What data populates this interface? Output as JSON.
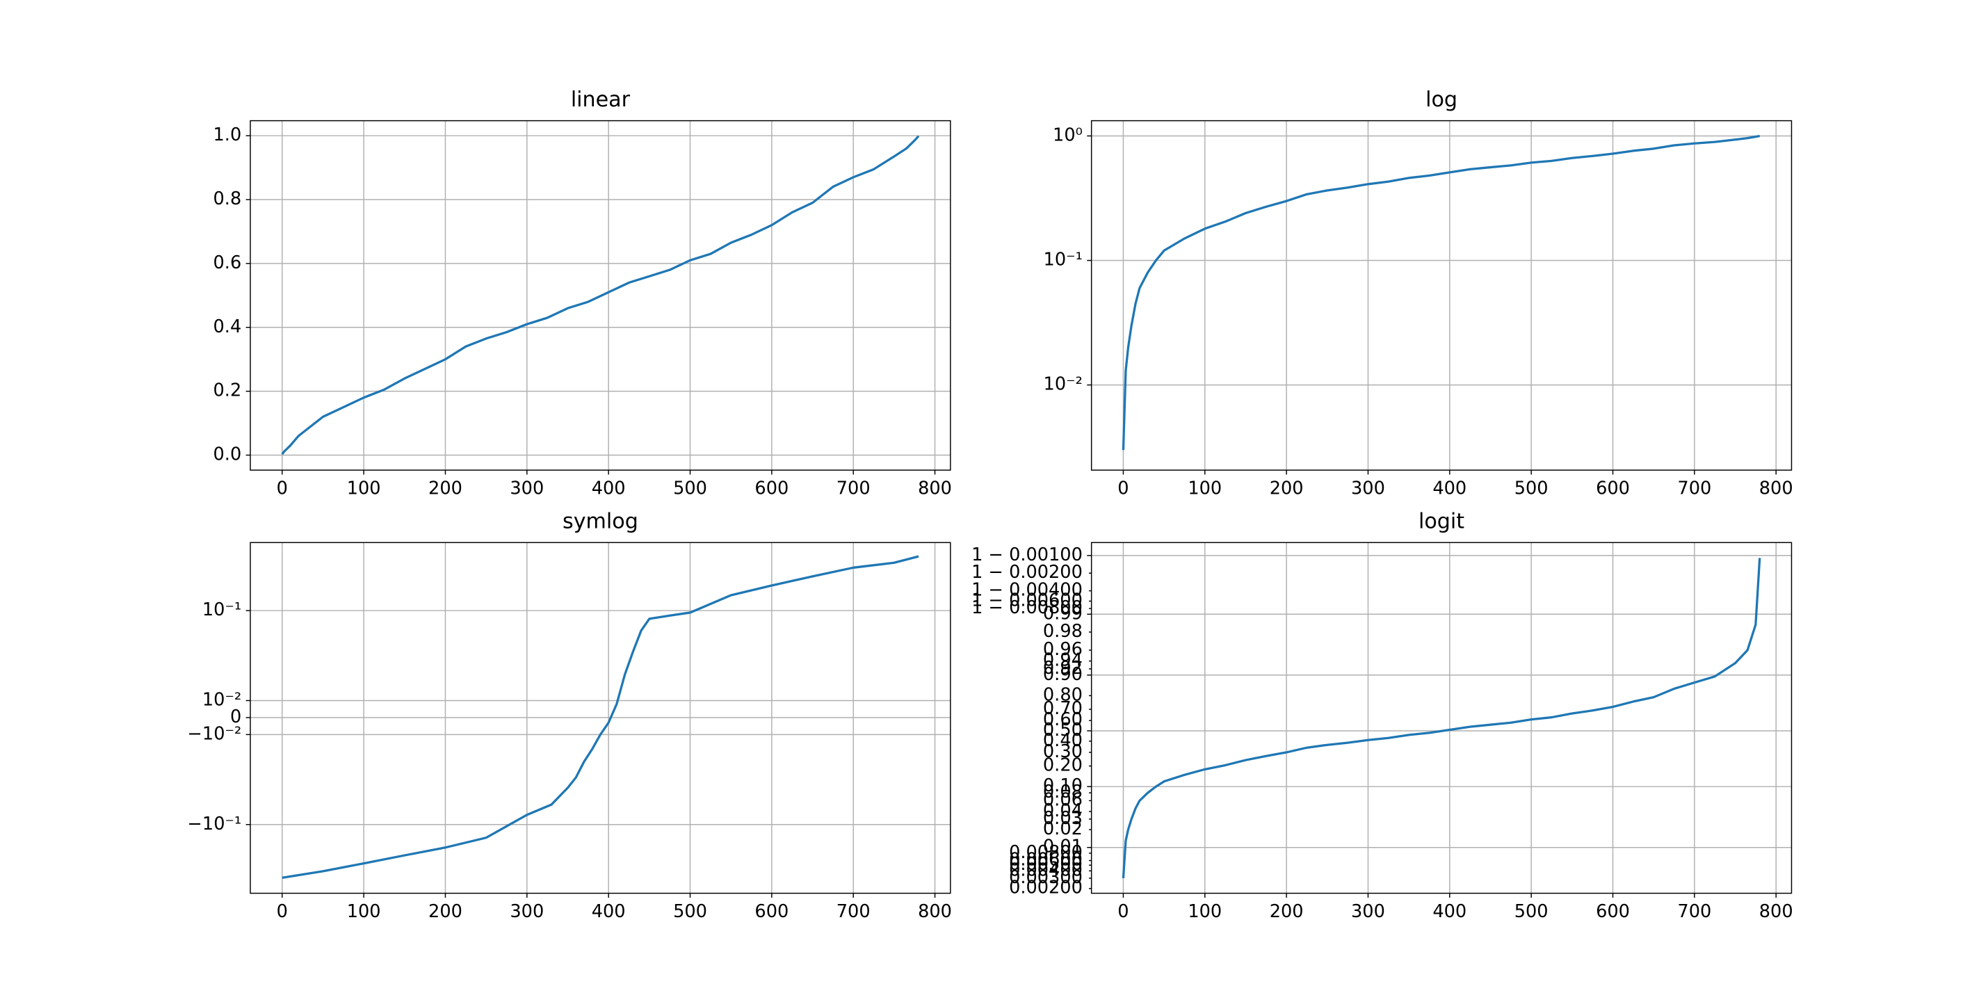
{
  "chart_data": [
    {
      "type": "line",
      "title": "linear",
      "yscale": "linear",
      "color": "#1f77b4",
      "grid": true,
      "x": [
        0,
        3,
        6,
        10,
        15,
        20,
        30,
        40,
        50,
        75,
        100,
        125,
        150,
        175,
        200,
        225,
        250,
        275,
        300,
        325,
        350,
        375,
        400,
        425,
        450,
        475,
        500,
        525,
        550,
        575,
        600,
        625,
        650,
        675,
        700,
        725,
        750,
        765,
        775,
        780
      ],
      "values": [
        0.003,
        0.013,
        0.02,
        0.03,
        0.045,
        0.06,
        0.08,
        0.1,
        0.12,
        0.15,
        0.18,
        0.205,
        0.24,
        0.27,
        0.3,
        0.34,
        0.365,
        0.385,
        0.41,
        0.43,
        0.46,
        0.48,
        0.51,
        0.54,
        0.56,
        0.58,
        0.61,
        0.63,
        0.665,
        0.69,
        0.72,
        0.76,
        0.79,
        0.84,
        0.87,
        0.895,
        0.935,
        0.96,
        0.985,
        0.9989
      ],
      "xlim": [
        -39,
        819
      ],
      "xticks": [
        0,
        100,
        200,
        300,
        400,
        500,
        600,
        700,
        800
      ],
      "ylim": [
        -0.047,
        1.047
      ],
      "yticks": [
        {
          "value": 0,
          "label": "0.0"
        },
        {
          "value": 0.2,
          "label": "0.2"
        },
        {
          "value": 0.4,
          "label": "0.4"
        },
        {
          "value": 0.6,
          "label": "0.6"
        },
        {
          "value": 0.8,
          "label": "0.8"
        },
        {
          "value": 1,
          "label": "1.0"
        }
      ]
    },
    {
      "type": "line",
      "title": "log",
      "yscale": "log",
      "color": "#1f77b4",
      "grid": true,
      "x": [
        0,
        3,
        6,
        10,
        15,
        20,
        30,
        40,
        50,
        75,
        100,
        125,
        150,
        175,
        200,
        225,
        250,
        275,
        300,
        325,
        350,
        375,
        400,
        425,
        450,
        475,
        500,
        525,
        550,
        575,
        600,
        625,
        650,
        675,
        700,
        725,
        750,
        765,
        775,
        780
      ],
      "values": [
        0.003,
        0.013,
        0.02,
        0.03,
        0.045,
        0.06,
        0.08,
        0.1,
        0.12,
        0.15,
        0.18,
        0.205,
        0.24,
        0.27,
        0.3,
        0.34,
        0.365,
        0.385,
        0.41,
        0.43,
        0.46,
        0.48,
        0.51,
        0.54,
        0.56,
        0.58,
        0.61,
        0.63,
        0.665,
        0.69,
        0.72,
        0.76,
        0.79,
        0.84,
        0.87,
        0.895,
        0.935,
        0.96,
        0.985,
        0.9989
      ],
      "xlim": [
        -39,
        819
      ],
      "xticks": [
        0,
        100,
        200,
        300,
        400,
        500,
        600,
        700,
        800
      ],
      "ylim": [
        0.00207,
        1.325
      ],
      "yticks": [
        {
          "value": 0.01,
          "label": "10⁻²"
        },
        {
          "value": 0.1,
          "label": "10⁻¹"
        },
        {
          "value": 1,
          "label": "10⁰"
        }
      ]
    },
    {
      "type": "line",
      "title": "symlog",
      "yscale": "symlog",
      "linthresh": 0.01,
      "linscale": 0.17,
      "color": "#1f77b4",
      "grid": true,
      "x": [
        0,
        50,
        100,
        150,
        200,
        250,
        300,
        330,
        350,
        360,
        370,
        380,
        390,
        400,
        410,
        420,
        430,
        440,
        450,
        475,
        500,
        550,
        600,
        650,
        700,
        750,
        780
      ],
      "values": [
        -0.39,
        -0.33,
        -0.27,
        -0.22,
        -0.18,
        -0.14,
        -0.078,
        -0.06,
        -0.039,
        -0.03,
        -0.02,
        -0.0145,
        -0.01,
        -0.003,
        0.008,
        0.0195,
        0.035,
        0.06,
        0.081,
        0.088,
        0.095,
        0.148,
        0.19,
        0.24,
        0.3,
        0.34,
        0.4
      ],
      "xlim": [
        -39,
        819
      ],
      "xticks": [
        0,
        100,
        200,
        300,
        400,
        500,
        600,
        700,
        800
      ],
      "ylim": [
        -0.58,
        0.57
      ],
      "yticks": [
        {
          "value": -0.1,
          "label": "−10⁻¹"
        },
        {
          "value": -0.01,
          "label": "−10⁻²"
        },
        0,
        {
          "value": 0.01,
          "label": "10⁻²"
        },
        {
          "value": 0.1,
          "label": "10⁻¹"
        }
      ]
    },
    {
      "type": "line",
      "title": "logit",
      "yscale": "logit",
      "color": "#1f77b4",
      "grid": true,
      "x": [
        0,
        3,
        6,
        10,
        15,
        20,
        30,
        40,
        50,
        75,
        100,
        125,
        150,
        175,
        200,
        225,
        250,
        275,
        300,
        325,
        350,
        375,
        400,
        425,
        450,
        475,
        500,
        525,
        550,
        575,
        600,
        625,
        650,
        675,
        700,
        725,
        750,
        765,
        775,
        780
      ],
      "values": [
        0.003,
        0.013,
        0.02,
        0.03,
        0.045,
        0.06,
        0.08,
        0.1,
        0.12,
        0.15,
        0.18,
        0.205,
        0.24,
        0.27,
        0.3,
        0.34,
        0.365,
        0.385,
        0.41,
        0.43,
        0.46,
        0.48,
        0.51,
        0.54,
        0.56,
        0.58,
        0.61,
        0.63,
        0.665,
        0.69,
        0.72,
        0.76,
        0.79,
        0.84,
        0.87,
        0.895,
        0.935,
        0.96,
        0.985,
        0.9989
      ],
      "xlim": [
        -39,
        819
      ],
      "xticks": [
        0,
        100,
        200,
        300,
        400,
        500,
        600,
        700,
        800
      ],
      "ylim": [
        0.00166,
        0.9994
      ],
      "yticks": [
        {
          "value": 0.01,
          "label": "0.01"
        },
        {
          "value": 0.1,
          "label": "0.10"
        },
        {
          "value": 0.5,
          "label": "0.50"
        },
        {
          "value": 0.9,
          "label": "0.90"
        },
        {
          "value": 0.99,
          "label": "0.99"
        },
        {
          "value": 0.999,
          "label": "1 − 0.00100"
        }
      ],
      "yminorticks": [
        {
          "value": 0.002,
          "label": "0.00200"
        },
        {
          "value": 0.003,
          "label": "0.00300"
        },
        {
          "value": 0.004,
          "label": "0.00400"
        },
        {
          "value": 0.005,
          "label": "0.00500"
        },
        {
          "value": 0.006,
          "label": "0.00600"
        },
        {
          "value": 0.008,
          "label": "0.00800"
        },
        {
          "value": 0.02,
          "label": "0.02"
        },
        {
          "value": 0.03,
          "label": "0.03"
        },
        {
          "value": 0.04,
          "label": "0.04"
        },
        {
          "value": 0.06,
          "label": "0.06"
        },
        {
          "value": 0.08,
          "label": "0.08"
        },
        {
          "value": 0.2,
          "label": "0.20"
        },
        {
          "value": 0.3,
          "label": "0.30"
        },
        {
          "value": 0.4,
          "label": "0.40"
        },
        {
          "value": 0.6,
          "label": "0.60"
        },
        {
          "value": 0.7,
          "label": "0.70"
        },
        {
          "value": 0.8,
          "label": "0.80"
        },
        {
          "value": 0.92,
          "label": "0.92"
        },
        {
          "value": 0.94,
          "label": "0.94"
        },
        {
          "value": 0.96,
          "label": "0.96"
        },
        {
          "value": 0.98,
          "label": "0.98"
        },
        {
          "value": 0.992,
          "label": "1 − 0.00800"
        },
        {
          "value": 0.994,
          "label": "1 − 0.00600"
        },
        {
          "value": 0.996,
          "label": "1 − 0.00400"
        },
        {
          "value": 0.998,
          "label": "1 − 0.00200"
        }
      ]
    }
  ]
}
